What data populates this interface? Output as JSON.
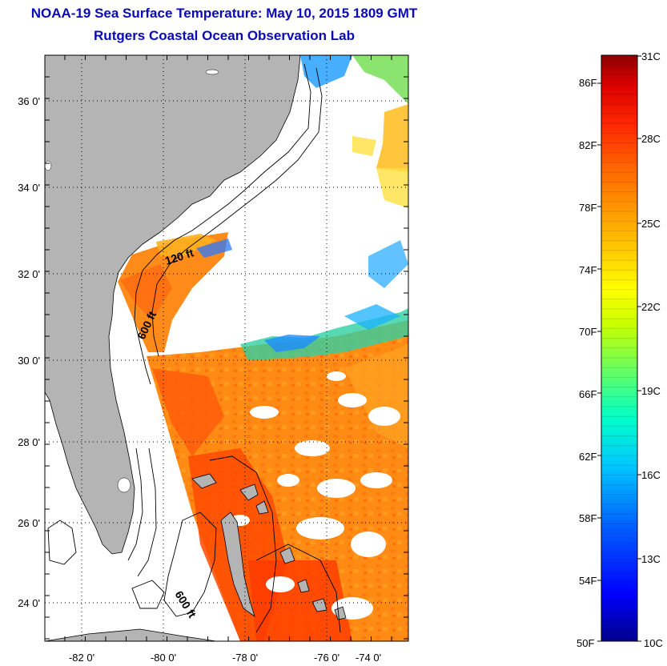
{
  "header": {
    "title": "NOAA-19 Sea Surface Temperature:  May 10, 2015 1809 GMT",
    "subtitle": "Rutgers Coastal Ocean Observation Lab",
    "title_color": "#0a0ab4"
  },
  "map": {
    "lon_ticks": [
      "-82 0'",
      "-80 0'",
      "-78 0'",
      "-76 0'",
      "-74 0'"
    ],
    "lat_ticks": [
      "36 0'",
      "34 0'",
      "32 0'",
      "30 0'",
      "28 0'",
      "26 0'",
      "24 0'"
    ],
    "contour_labels": [
      "120 ft",
      "600 ft",
      "600 ft"
    ],
    "land_color": "#b4b4b4",
    "cloud_color": "#ffffff"
  },
  "colorbar": {
    "fahrenheit_labels": [
      "86F",
      "82F",
      "78F",
      "74F",
      "70F",
      "66F",
      "62F",
      "58F",
      "54F",
      "50F"
    ],
    "celsius_labels": [
      "31C",
      "28C",
      "25C",
      "22C",
      "19C",
      "16C",
      "13C",
      "10C"
    ],
    "colors": [
      "#00008c",
      "#0000ff",
      "#0064ff",
      "#00c8ff",
      "#00ffc8",
      "#64ff64",
      "#c8ff00",
      "#ffff00",
      "#ffc800",
      "#ff9600",
      "#ff6400",
      "#ff2800",
      "#dc0000",
      "#8c0000"
    ]
  }
}
